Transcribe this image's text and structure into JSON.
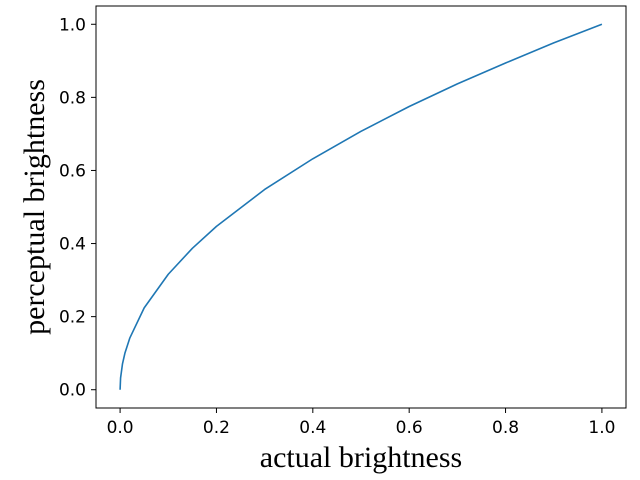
{
  "chart_data": {
    "type": "line",
    "xlabel": "actual brightness",
    "ylabel": "perceptual brightness",
    "xlim": [
      -0.05,
      1.05
    ],
    "ylim": [
      -0.05,
      1.05
    ],
    "xticks": [
      "0.0",
      "0.2",
      "0.4",
      "0.6",
      "0.8",
      "1.0"
    ],
    "yticks": [
      "0.0",
      "0.2",
      "0.4",
      "0.6",
      "0.8",
      "1.0"
    ],
    "grid": false,
    "legend": "none",
    "series": [
      {
        "color": "#1f77b4",
        "x": [
          0,
          0.001,
          0.005,
          0.01,
          0.02,
          0.05,
          0.1,
          0.15,
          0.2,
          0.3,
          0.4,
          0.5,
          0.6,
          0.7,
          0.8,
          0.9,
          1.0
        ],
        "y": [
          0,
          0.032,
          0.071,
          0.1,
          0.141,
          0.224,
          0.316,
          0.387,
          0.447,
          0.548,
          0.632,
          0.707,
          0.775,
          0.837,
          0.894,
          0.949,
          1.0
        ]
      }
    ]
  }
}
